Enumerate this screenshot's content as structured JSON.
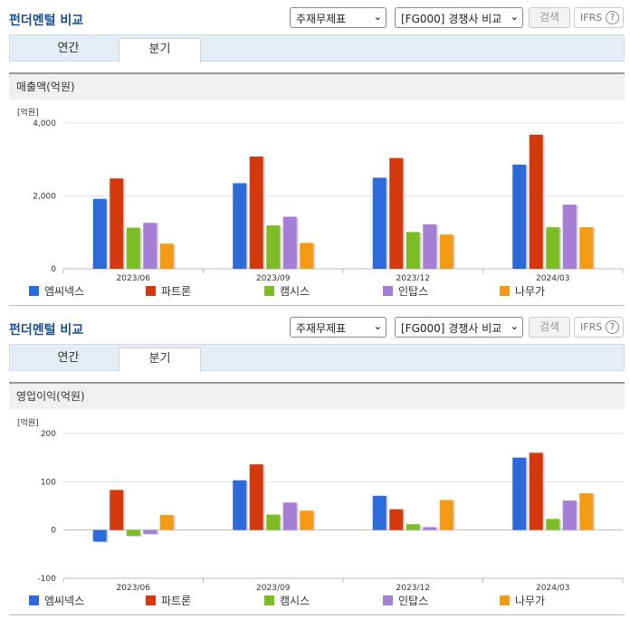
{
  "panels": [
    {
      "title": "펀더멘털 비교",
      "statement_select": "주재무제표",
      "compare_select": "[FG000] 경쟁사 비교",
      "search_label": "검색",
      "ifrs_label": "IFRS",
      "help_icon": "?",
      "tabs": [
        "연간",
        "분기"
      ],
      "active_tab": 1,
      "chart_title": "매출액(억원)",
      "unit": "[억원]"
    },
    {
      "title": "펀더멘털 비교",
      "statement_select": "주재무제표",
      "compare_select": "[FG000] 경쟁사 비교",
      "search_label": "검색",
      "ifrs_label": "IFRS",
      "help_icon": "?",
      "tabs": [
        "연간",
        "분기"
      ],
      "active_tab": 1,
      "chart_title": "영업이익(억원)",
      "unit": "[억원]"
    }
  ],
  "chart_data": [
    {
      "type": "bar",
      "title": "매출액(억원)",
      "unit": "[억원]",
      "categories": [
        "2023/06",
        "2023/09",
        "2023/12",
        "2024/03"
      ],
      "ylim": [
        0,
        4000
      ],
      "yticks": [
        "0",
        "2,000",
        "4,000"
      ],
      "ytick_values": [
        0,
        2000,
        4000
      ],
      "grid": true,
      "legend_position": "bottom",
      "series": [
        {
          "name": "엠씨넥스",
          "color": "#2b6ad8",
          "values": [
            1920,
            2350,
            2500,
            2860
          ]
        },
        {
          "name": "파트론",
          "color": "#d4380d",
          "values": [
            2480,
            3080,
            3040,
            3680
          ]
        },
        {
          "name": "캠시스",
          "color": "#7cbd26",
          "values": [
            1130,
            1190,
            1010,
            1140
          ]
        },
        {
          "name": "인탑스",
          "color": "#a57fd6",
          "values": [
            1260,
            1430,
            1220,
            1760
          ]
        },
        {
          "name": "나무가",
          "color": "#f59a14",
          "values": [
            690,
            710,
            940,
            1140
          ]
        }
      ]
    },
    {
      "type": "bar",
      "title": "영업이익(억원)",
      "unit": "[억원]",
      "categories": [
        "2023/06",
        "2023/09",
        "2023/12",
        "2024/03"
      ],
      "ylim": [
        -100,
        200
      ],
      "yticks": [
        "-100",
        "0",
        "100",
        "200"
      ],
      "ytick_values": [
        -100,
        0,
        100,
        200
      ],
      "grid": true,
      "legend_position": "bottom",
      "series": [
        {
          "name": "엠씨넥스",
          "color": "#2b6ad8",
          "values": [
            -24,
            103,
            71,
            150
          ]
        },
        {
          "name": "파트론",
          "color": "#d4380d",
          "values": [
            83,
            136,
            43,
            160
          ]
        },
        {
          "name": "캠시스",
          "color": "#7cbd26",
          "values": [
            -12,
            32,
            12,
            23
          ]
        },
        {
          "name": "인탑스",
          "color": "#a57fd6",
          "values": [
            -8,
            57,
            6,
            61
          ]
        },
        {
          "name": "나무가",
          "color": "#f59a14",
          "values": [
            31,
            40,
            62,
            76
          ]
        }
      ]
    }
  ]
}
